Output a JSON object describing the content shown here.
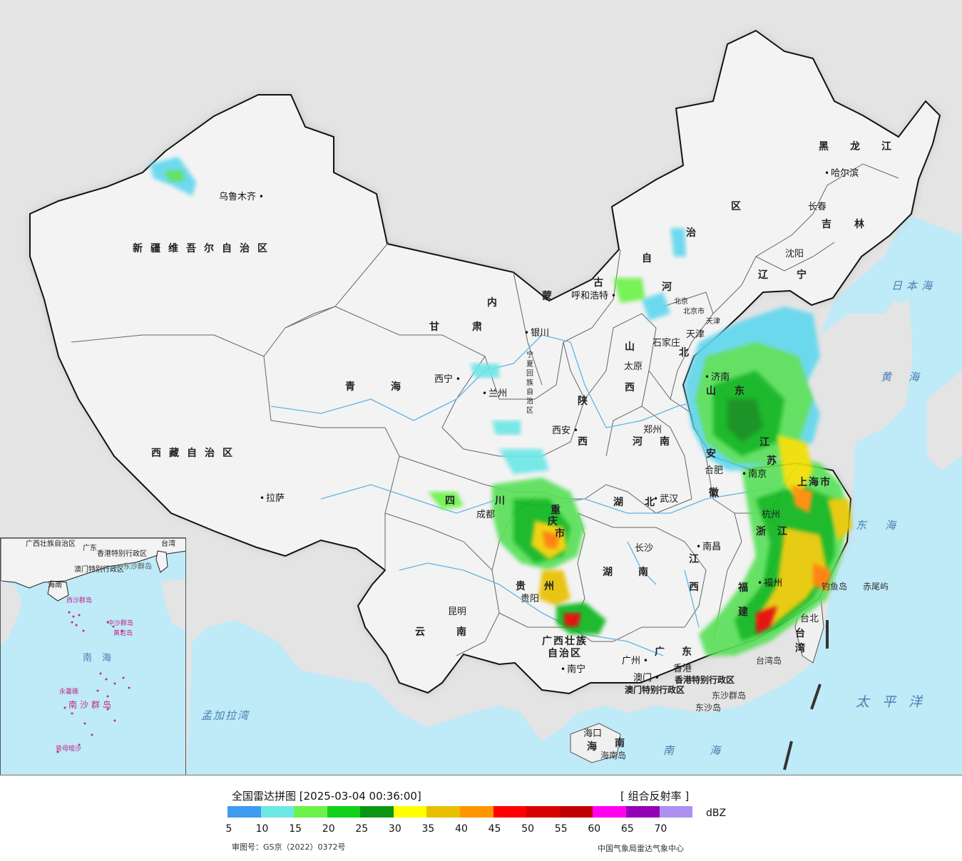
{
  "legend": {
    "title": "全国雷达拼图 [2025-03-04 00:36:00]",
    "type": "[ 组合反射率 ]",
    "unit": "dBZ",
    "colors": [
      "#3e9bf0",
      "#6de6e6",
      "#6cf24a",
      "#11d21a",
      "#0b9614",
      "#ffff00",
      "#e8c000",
      "#ff9600",
      "#ff0000",
      "#d60000",
      "#c00000",
      "#ff00f0",
      "#9600b4",
      "#ad90f0"
    ],
    "ticks": [
      "5",
      "10",
      "15",
      "20",
      "25",
      "30",
      "35",
      "40",
      "45",
      "50",
      "55",
      "60",
      "65",
      "70"
    ],
    "approval": "审图号：GS京（2022）0372号",
    "org": "中国气象局雷达气象中心"
  },
  "provinces": {
    "xinjiang": "新疆维吾尔自治区",
    "xizang": "西藏自治区",
    "qinghai": "青海",
    "gansu": "甘肃",
    "neimenggu_1": "内",
    "neimenggu_2": "蒙",
    "neimenggu_3": "古",
    "neimenggu_4": "自",
    "neimenggu_5": "治",
    "neimenggu_6": "区",
    "heilongjiang": "黑龙江",
    "jilin": "吉林",
    "liaoning": "辽宁",
    "hebei_1": "河",
    "hebei_2": "北",
    "shanxi_1": "山",
    "shanxi_2": "西",
    "shaanxi_1": "陕",
    "shaanxi_2": "西",
    "ningxia": "宁夏回族自治区",
    "shandong_1": "山",
    "shandong_2": "东",
    "henan": "河南",
    "jiangsu_1": "江",
    "jiangsu_2": "苏",
    "anhui_1": "安",
    "anhui_2": "徽",
    "shanghai": "上海市",
    "zhejiang": "浙江",
    "hubei": "湖北",
    "sichuan": "四川",
    "chongqing_1": "重",
    "chongqing_2": "庆",
    "chongqing_3": "市",
    "guizhou": "贵州",
    "yunnan": "云南",
    "hunan": "湖南",
    "jiangxi_1": "江",
    "jiangxi_2": "西",
    "fujian_1": "福",
    "fujian_2": "建",
    "guangxi_1": "广西壮族",
    "guangxi_2": "自治区",
    "guangdong": "广东",
    "hainan_1": "海",
    "hainan_2": "南",
    "taiwan_1": "台",
    "taiwan_2": "湾",
    "beijing": "北京",
    "tianjin": "天津",
    "hongkong": "香港特别行政区",
    "macau": "澳门特别行政区"
  },
  "cities": {
    "urumqi": "乌鲁木齐",
    "lhasa": "拉萨",
    "xining": "西宁",
    "lanzhou": "兰州",
    "yinchuan": "银川",
    "hohhot": "呼和浩特",
    "harbin": "哈尔滨",
    "changchun": "长春",
    "shenyang": "沈阳",
    "shijiazhuang": "石家庄",
    "taiyuan": "太原",
    "jinan": "济南",
    "zhengzhou": "郑州",
    "xian": "西安",
    "hefei": "合肥",
    "nanjing": "南京",
    "hangzhou": "杭州",
    "wuhan": "武汉",
    "chengdu": "成都",
    "guiyang": "贵阳",
    "kunming": "昆明",
    "changsha": "长沙",
    "nanchang": "南昌",
    "fuzhou": "福州",
    "nanning": "南宁",
    "guangzhou": "广州",
    "macau_city": "澳门",
    "hongkong_city": "香港",
    "haikou": "海口",
    "taibei": "台北",
    "beijing_city": "北京市",
    "tianjin_city": "天津"
  },
  "seas": {
    "japan": "日本海",
    "yellow": "黄海",
    "east": "东海",
    "pacific": "太平洋",
    "south": "南海",
    "bengal": "孟加拉湾"
  },
  "islands": {
    "diaoyu": "钓鱼岛",
    "chiwei": "赤尾屿",
    "taiwan_island": "台湾岛",
    "dongsha_qundao": "东沙群岛",
    "dongsha_dao": "东沙岛",
    "hainan_island": "海南岛"
  },
  "inset": {
    "guangxi": "广西壮族自治区",
    "guangdong": "广东",
    "taiwan": "台湾",
    "hongkong": "香港特别行政区",
    "macau": "澳门特别行政区",
    "dongsha": "东沙群岛",
    "hainan": "海南",
    "xisha": "西沙群岛",
    "zhongsha": "中沙群岛",
    "huangyan": "黄岩岛",
    "south_sea": "南海",
    "nansha": "南沙群岛",
    "yongshu": "永暑礁",
    "zengmu": "曾母暗沙"
  }
}
